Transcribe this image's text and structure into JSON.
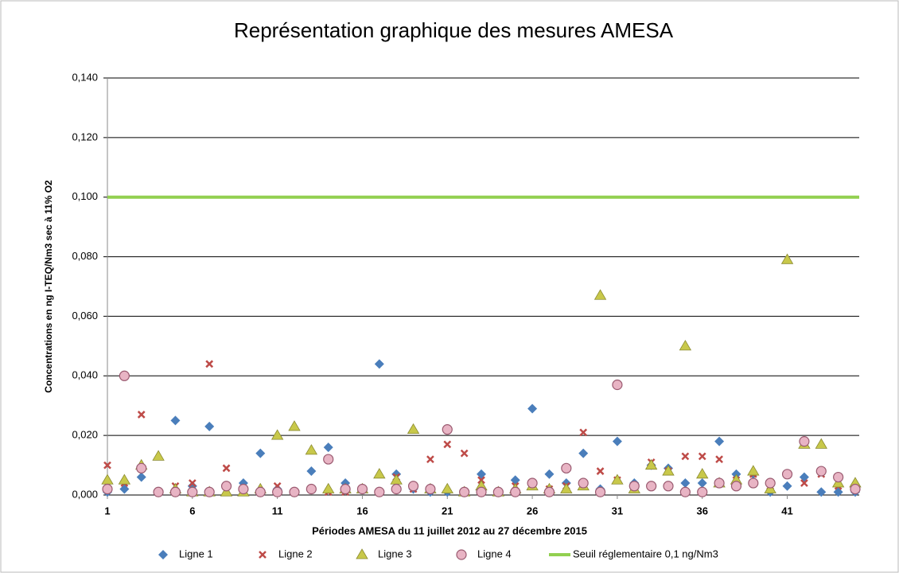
{
  "chart_data": {
    "type": "scatter",
    "title": "Représentation graphique des mesures AMESA",
    "xlabel": "Périodes AMESA  du 11 juillet 2012 au 27 décembre 2015",
    "ylabel": "Concentrations en ng I-TEQ/Nm3 sec à 11% O2",
    "x": [
      1,
      2,
      3,
      4,
      5,
      6,
      7,
      8,
      9,
      10,
      11,
      12,
      13,
      14,
      15,
      16,
      17,
      18,
      19,
      20,
      21,
      22,
      23,
      24,
      25,
      26,
      27,
      28,
      29,
      30,
      31,
      32,
      33,
      34,
      35,
      36,
      37,
      38,
      39,
      40,
      41,
      42,
      43,
      44,
      45
    ],
    "xlim": [
      1,
      45
    ],
    "xticks": [
      1,
      6,
      11,
      16,
      21,
      26,
      31,
      36,
      41
    ],
    "ylim": [
      0,
      0.14
    ],
    "yticks": [
      {
        "value": 0,
        "label": "0,000"
      },
      {
        "value": 0.02,
        "label": "0,020"
      },
      {
        "value": 0.04,
        "label": "0,040"
      },
      {
        "value": 0.06,
        "label": "0,060"
      },
      {
        "value": 0.08,
        "label": "0,080"
      },
      {
        "value": 0.1,
        "label": "0,100"
      },
      {
        "value": 0.12,
        "label": "0,120"
      },
      {
        "value": 0.14,
        "label": "0,140"
      }
    ],
    "grid": true,
    "legend": "bottom",
    "series": [
      {
        "name": "Ligne 1",
        "color": "#4a7ebb",
        "marker": "diamond",
        "values": [
          0.001,
          0.002,
          0.006,
          0.001,
          0.025,
          0.003,
          0.023,
          0.003,
          0.004,
          0.014,
          0.002,
          0.001,
          0.008,
          0.016,
          0.004,
          0.002,
          0.044,
          0.007,
          0.002,
          0.001,
          0.001,
          0.001,
          0.007,
          0.001,
          0.005,
          0.029,
          0.007,
          0.004,
          0.014,
          0.002,
          0.018,
          0.004,
          0.01,
          0.009,
          0.004,
          0.004,
          0.018,
          0.007,
          0.007,
          0.001,
          0.003,
          0.006,
          0.001,
          0.001,
          0.001
        ]
      },
      {
        "name": "Ligne 2",
        "color": "#be4b48",
        "marker": "x",
        "values": [
          0.01,
          0.004,
          0.027,
          0.001,
          0.003,
          0.004,
          0.044,
          0.009,
          0.002,
          0.001,
          0.003,
          0.001,
          0.002,
          0.001,
          0.001,
          0.002,
          0.001,
          0.006,
          0.002,
          0.012,
          0.017,
          0.014,
          0.005,
          0.001,
          0.003,
          0.003,
          0.002,
          0.003,
          0.021,
          0.008,
          0.005,
          0.002,
          0.011,
          0.008,
          0.013,
          0.013,
          0.012,
          0.005,
          0.007,
          0.003,
          0.007,
          0.004,
          0.007,
          0.003,
          0.002
        ]
      },
      {
        "name": "Ligne 3",
        "color": "#c8c84a",
        "marker": "triangle",
        "values": [
          0.005,
          0.005,
          0.01,
          0.013,
          0.002,
          0.001,
          0.001,
          0.001,
          0.001,
          0.002,
          0.02,
          0.023,
          0.015,
          0.002,
          0.002,
          0.002,
          0.007,
          0.005,
          0.022,
          0.002,
          0.002,
          0.001,
          0.003,
          0.001,
          0.002,
          0.003,
          0.002,
          0.002,
          0.003,
          0.067,
          0.005,
          0.002,
          0.01,
          0.008,
          0.05,
          0.007,
          0.004,
          0.005,
          0.008,
          0.002,
          0.079,
          0.017,
          0.017,
          0.004,
          0.004
        ]
      },
      {
        "name": "Ligne 4",
        "color": "#e8b4c4",
        "marker": "circle",
        "values": [
          0.002,
          0.04,
          0.009,
          0.001,
          0.001,
          0.001,
          0.001,
          0.003,
          0.002,
          0.001,
          0.001,
          0.001,
          0.002,
          0.012,
          0.002,
          0.002,
          0.001,
          0.002,
          0.003,
          0.002,
          0.022,
          0.001,
          0.001,
          0.001,
          0.001,
          0.004,
          0.001,
          0.009,
          0.004,
          0.001,
          0.037,
          0.003,
          0.003,
          0.003,
          0.001,
          0.001,
          0.004,
          0.003,
          0.004,
          0.004,
          0.007,
          0.018,
          0.008,
          0.006,
          0.002
        ]
      }
    ],
    "threshold": {
      "name": "Seuil réglementaire 0,1 ng/Nm3",
      "value": 0.1,
      "color": "#92d050"
    }
  }
}
